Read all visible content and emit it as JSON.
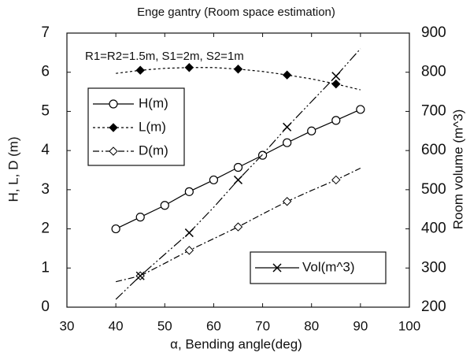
{
  "chart_data": {
    "type": "line",
    "title": "Enge gantry (Room space estimation)",
    "annotation": "R1=R2=1.5m,   S1=2m,    S2=1m",
    "xlabel": "α, Bending angle(deg)",
    "ylabel": "H, L, D (m)",
    "y2label": "Room volume (m^3)",
    "x": [
      40,
      45,
      50,
      55,
      60,
      65,
      70,
      75,
      80,
      85,
      90
    ],
    "series": [
      {
        "name": "H(m)",
        "color": "#000000",
        "dash": "none",
        "marker": "circle",
        "markevery": [
          0,
          1
        ],
        "values": [
          2.0,
          2.3,
          2.6,
          2.95,
          3.25,
          3.57,
          3.88,
          4.2,
          4.5,
          4.77,
          5.05
        ]
      },
      {
        "name": "L(m)",
        "color": "#000000",
        "dash": "3 3",
        "marker": "diamond-filled",
        "markevery": [
          1,
          2
        ],
        "values": [
          5.97,
          6.05,
          6.1,
          6.12,
          6.12,
          6.08,
          6.02,
          5.93,
          5.83,
          5.7,
          5.55
        ]
      },
      {
        "name": "D(m)",
        "color": "#000000",
        "dash": "8 3 2 3",
        "marker": "diamond-open",
        "markevery": [
          1,
          2
        ],
        "values": [
          0.65,
          0.8,
          1.12,
          1.45,
          1.75,
          2.05,
          2.38,
          2.7,
          2.98,
          3.25,
          3.55
        ]
      },
      {
        "name": "Vol(m^3)",
        "color": "#000000",
        "dash": "12 3 2 3 2 3",
        "marker": "x",
        "markevery": [
          1,
          2
        ],
        "axis": "y2",
        "values": [
          220,
          280,
          335,
          390,
          455,
          525,
          590,
          660,
          725,
          790,
          860
        ]
      }
    ],
    "xlim": [
      30,
      100
    ],
    "xticks": [
      30,
      40,
      50,
      60,
      70,
      80,
      90,
      100
    ],
    "ylim": [
      0,
      7
    ],
    "yticks": [
      0,
      1,
      2,
      3,
      4,
      5,
      6,
      7
    ],
    "y2lim": [
      200,
      900
    ],
    "y2ticks": [
      200,
      300,
      400,
      500,
      600,
      700,
      800,
      900
    ]
  }
}
